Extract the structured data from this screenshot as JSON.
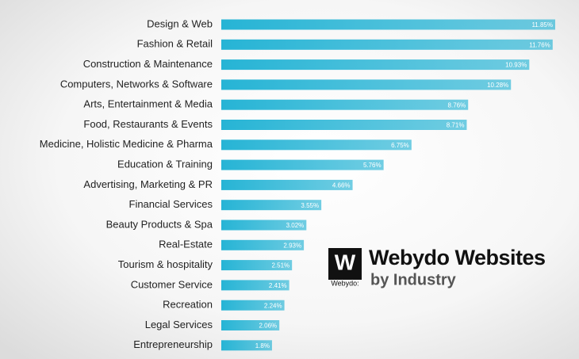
{
  "chart_data": {
    "type": "bar",
    "orientation": "horizontal",
    "title": "Webydo Websites",
    "subtitle": "by Industry",
    "logo": {
      "letter": "W",
      "text": "Webydo:"
    },
    "color": "#26b4d5",
    "categories": [
      "Design & Web",
      "Fashion & Retail",
      "Construction & Maintenance",
      "Computers, Networks & Software",
      "Arts, Entertainment & Media",
      "Food, Restaurants & Events",
      "Medicine, Holistic Medicine & Pharma",
      "Education & Training",
      "Advertising, Marketing & PR",
      "Financial Services",
      "Beauty Products & Spa",
      "Real-Estate",
      "Tourism & hospitality",
      "Customer Service",
      "Recreation",
      "Legal Services",
      "Entrepreneurship"
    ],
    "values": [
      11.85,
      11.76,
      10.93,
      10.28,
      8.76,
      8.71,
      6.75,
      5.76,
      4.66,
      3.55,
      3.02,
      2.93,
      2.51,
      2.41,
      2.24,
      2.06,
      1.8
    ],
    "value_labels": [
      "11.85%",
      "11.76%",
      "10.93%",
      "10.28%",
      "8.76%",
      "8.71%",
      "6.75%",
      "5.76%",
      "4.66%",
      "3.55%",
      "3.02%",
      "2.93%",
      "2.51%",
      "2.41%",
      "2.24%",
      "2.06%",
      "1.8%"
    ]
  }
}
